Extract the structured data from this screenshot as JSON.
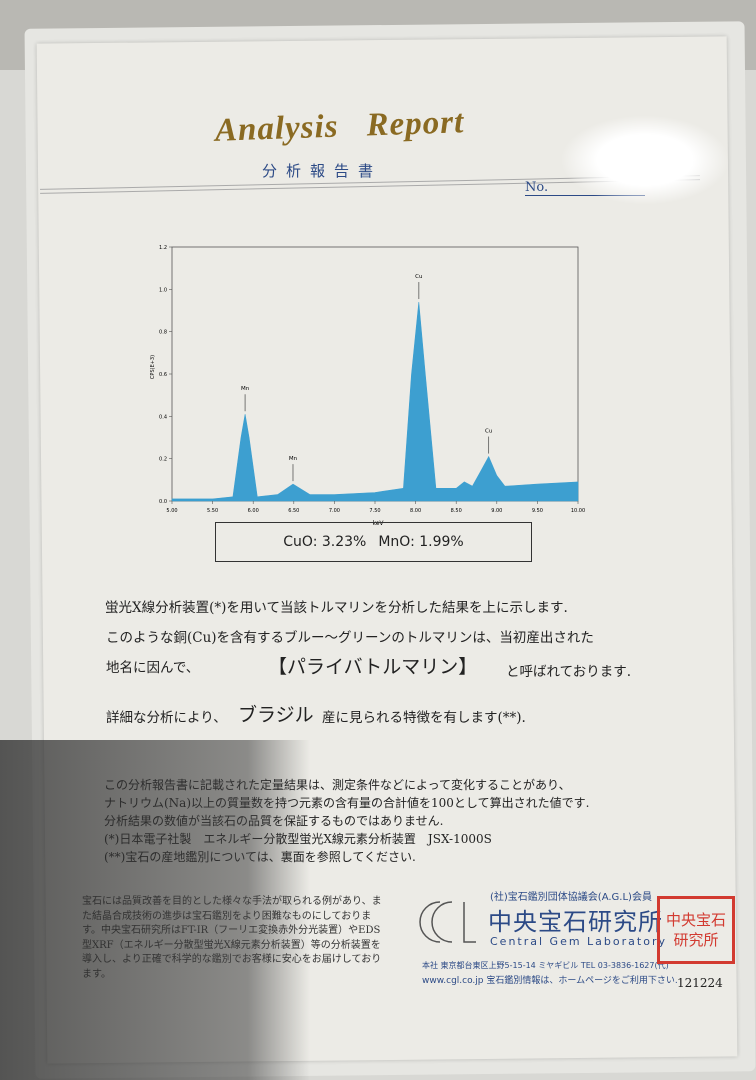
{
  "header": {
    "title_words": [
      "Analysis",
      "Report"
    ],
    "subtitle": "分析報告書",
    "number_label": "No."
  },
  "chart_data": {
    "type": "area",
    "xlabel": "keV",
    "ylabel": "CPS(E+3)",
    "xlim": [
      5.0,
      10.0
    ],
    "ylim": [
      0.0,
      1.2
    ],
    "grid": false,
    "color": "#3d9fd0",
    "x_ticks": [
      "5.00",
      "5.50",
      "6.00",
      "6.50",
      "7.00",
      "7.50",
      "8.00",
      "8.50",
      "9.00",
      "9.50",
      "10.00"
    ],
    "y_ticks": [
      "0.0",
      "0.2",
      "0.4",
      "0.6",
      "0.8",
      "1.0",
      "1.2"
    ],
    "peaks": [
      {
        "label": "Mn",
        "x": 5.9,
        "y": 0.41
      },
      {
        "label": "Mn",
        "x": 6.49,
        "y": 0.08
      },
      {
        "label": "Cu",
        "x": 8.04,
        "y": 0.94
      },
      {
        "label": "Cu",
        "x": 8.9,
        "y": 0.21
      }
    ],
    "series": [
      {
        "x": [
          5.0,
          5.5,
          5.75,
          5.85,
          5.9,
          5.95,
          6.05,
          6.3,
          6.49,
          6.7,
          7.0,
          7.5,
          7.85,
          7.95,
          8.04,
          8.12,
          8.25,
          8.5,
          8.6,
          8.7,
          8.8,
          8.9,
          9.0,
          9.1,
          9.5,
          10.0
        ],
        "y": [
          0.01,
          0.01,
          0.02,
          0.3,
          0.41,
          0.3,
          0.02,
          0.03,
          0.08,
          0.03,
          0.03,
          0.04,
          0.06,
          0.6,
          0.94,
          0.6,
          0.06,
          0.06,
          0.09,
          0.07,
          0.14,
          0.21,
          0.12,
          0.07,
          0.08,
          0.09
        ]
      }
    ]
  },
  "result": {
    "cuo": "CuO: 3.23%",
    "mno": "MnO: 1.99%"
  },
  "body": {
    "line1": "蛍光X線分析装置(*)を用いて当該トルマリンを分析した結果を上に示します.",
    "line2": "このような銅(Cu)を含有するブルー～グリーンのトルマリンは、当初産出された",
    "line3": "地名に因んで、",
    "variety": "【パライバトルマリン】",
    "line3_end": "と呼ばれております.",
    "line4_start": "詳細な分析により、",
    "origin": "ブラジル",
    "line4_end": "産に見られる特徴を有します(**)."
  },
  "disclaimer": [
    "この分析報告書に記載された定量結果は、測定条件などによって変化することがあり、",
    "ナトリウム(Na)以上の質量数を持つ元素の含有量の合計値を100として算出された値です.",
    "分析結果の数値が当該石の品質を保証するものではありません.",
    "(*)日本電子社製　エネルギー分散型蛍光X線元素分析装置　JSX-1000S",
    "(**)宝石の産地鑑別については、裏面を参照してください."
  ],
  "footer": {
    "note": "宝石には品質改善を目的とした様々な手法が取られる例があり、また結晶合成技術の進歩は宝石鑑別をより困難なものにしております。中央宝石研究所はFT-IR（フーリエ変換赤外分光装置）やEDS型XRF（エネルギー分散型蛍光X線元素分析装置）等の分析装置を導入し、より正確で科学的な鑑別でお客様に安心をお届けしております。",
    "association": "(社)宝石鑑別団体協議会(A.G.L)会員",
    "lab_name_jp": "中央宝石研究所",
    "lab_name_en": "Central Gem Laboratory",
    "logo": "CGL",
    "address": "本社 東京都台東区上野5-15-14 ミヤギビル TEL 03-3836-1627(代)",
    "web": "www.cgl.co.jp 宝石鑑別情報は、ホームページをご利用下さい.",
    "seal": "中央宝石研究所",
    "serial": "121224"
  }
}
